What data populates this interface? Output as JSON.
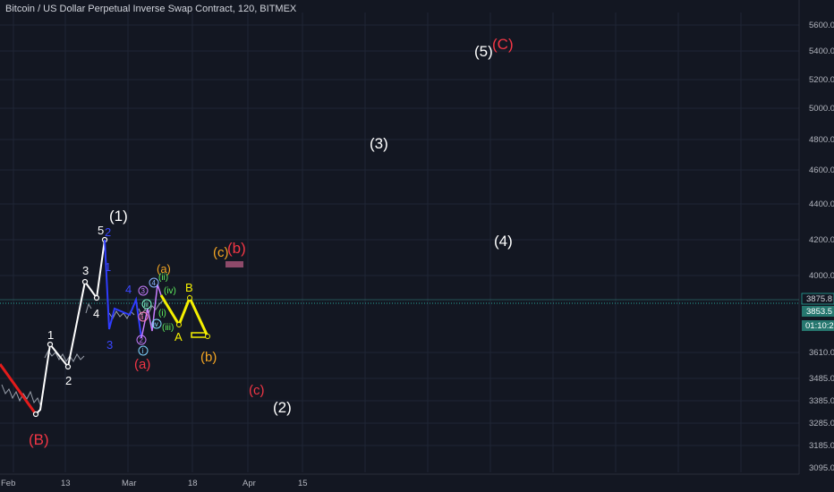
{
  "header": {
    "title": "Bitcoin / US Dollar Perpetual Inverse Swap Contract, 120, BITMEX"
  },
  "colors": {
    "background": "#131722",
    "grid": "#1f2535",
    "axis_text": "#b2b5be",
    "white_wave": "#ffffff",
    "blue_wave": "#2f3cff",
    "yellow_wave": "#f5f000",
    "red_label": "#f23645",
    "orange_label": "#f5a623",
    "green_label": "#5ef05e",
    "current_price_line": "#26a69a",
    "price_tag_1": "#26776f",
    "price_tag_2": "#26776f",
    "time_tag": "#26776f",
    "purple_box": "#8e4a6a"
  },
  "chart_data": {
    "type": "line",
    "yaxis": {
      "ticks": [
        "5600.0",
        "5400.0",
        "5200.0",
        "5000.0",
        "4800.0",
        "4600.0",
        "4400.0",
        "4200.0",
        "4000.0",
        "3610.0",
        "3485.0",
        "3385.0",
        "3285.0",
        "3185.0",
        "3095.0"
      ],
      "tags": [
        "3875.8",
        "3853.5",
        "01:10:29"
      ]
    },
    "xaxis": {
      "ticks": [
        "Feb",
        "13",
        "Mar",
        "18",
        "Apr",
        "15"
      ]
    },
    "wave_labels_white": [
      "(1)",
      "(2)",
      "(3)",
      "(4)",
      "(5)",
      "1",
      "2",
      "3",
      "4",
      "5"
    ],
    "wave_labels_red": [
      "(B)",
      "(C)",
      "(a)",
      "(b)",
      "(c)"
    ],
    "wave_labels_orange": [
      "(c)",
      "(a)",
      "(b)"
    ],
    "wave_labels_yellow": [
      "B",
      "A"
    ],
    "wave_labels_blue": [
      "2",
      "3",
      "4",
      "1"
    ],
    "wave_labels_green": [
      "(iii)",
      "(iv)",
      "(i)",
      "(ii)"
    ],
    "small_markers": [
      "3",
      "2",
      "4",
      "i",
      "ii",
      "iii",
      "iv"
    ]
  }
}
